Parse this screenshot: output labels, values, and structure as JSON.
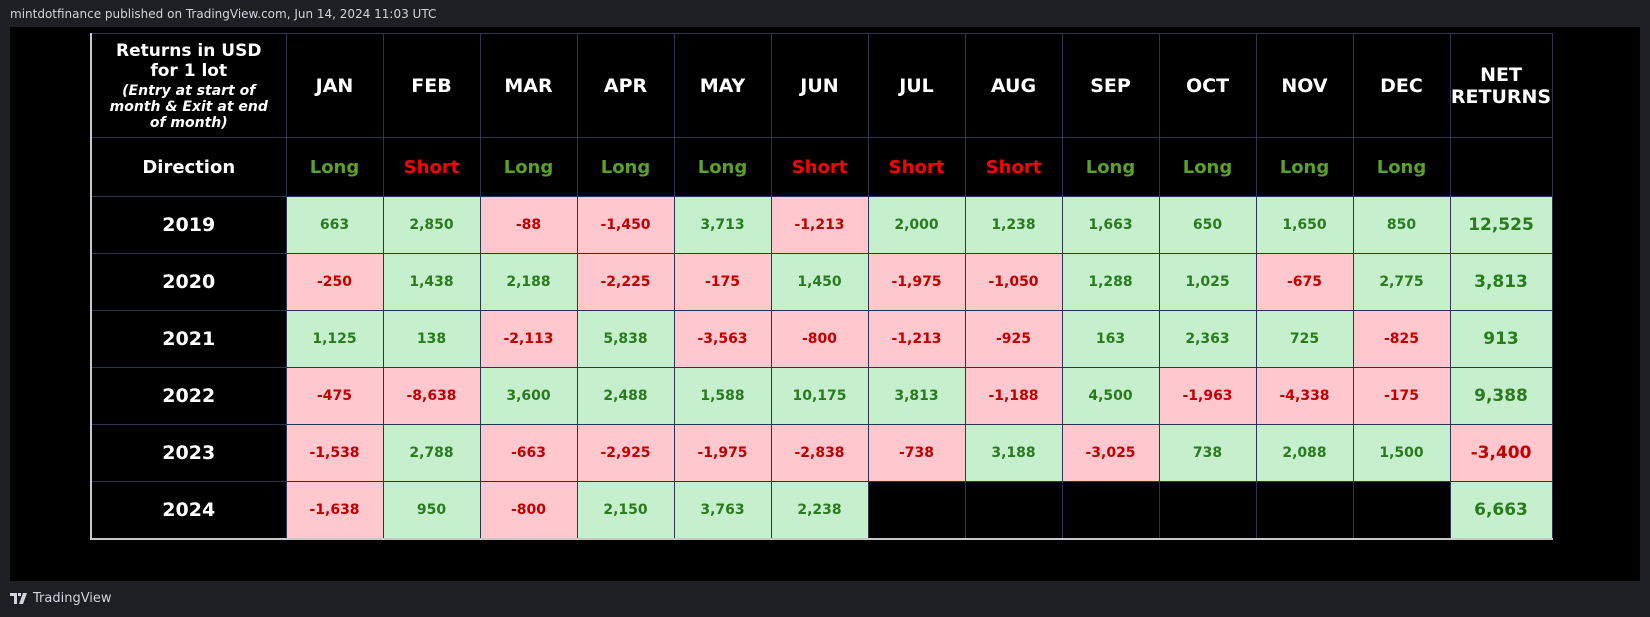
{
  "header": {
    "text": "mintdotfinance published on TradingView.com, Jun 14, 2024 11:03 UTC"
  },
  "table": {
    "corner_title": "Returns in USD for 1 lot",
    "corner_note": "(Entry at start of month & Exit at end of month)",
    "columns": [
      "JAN",
      "FEB",
      "MAR",
      "APR",
      "MAY",
      "JUN",
      "JUL",
      "AUG",
      "SEP",
      "OCT",
      "NOV",
      "DEC",
      "NET RETURNS"
    ],
    "direction_label": "Direction",
    "directions": [
      {
        "label": "Long",
        "color": "#5aa02c"
      },
      {
        "label": "Short",
        "color": "#ff0000"
      },
      {
        "label": "Long",
        "color": "#5aa02c"
      },
      {
        "label": "Long",
        "color": "#5aa02c"
      },
      {
        "label": "Long",
        "color": "#5aa02c"
      },
      {
        "label": "Short",
        "color": "#ff0000"
      },
      {
        "label": "Short",
        "color": "#ff0000"
      },
      {
        "label": "Short",
        "color": "#ff0000"
      },
      {
        "label": "Long",
        "color": "#5aa02c"
      },
      {
        "label": "Long",
        "color": "#5aa02c"
      },
      {
        "label": "Long",
        "color": "#5aa02c"
      },
      {
        "label": "Long",
        "color": "#5aa02c"
      }
    ],
    "rows": [
      {
        "year": "2019",
        "values": [
          "663",
          "2,850",
          "-88",
          "-1,450",
          "3,713",
          "-1,213",
          "2,000",
          "1,238",
          "1,663",
          "650",
          "1,650",
          "850"
        ],
        "net": "12,525"
      },
      {
        "year": "2020",
        "values": [
          "-250",
          "1,438",
          "2,188",
          "-2,225",
          "-175",
          "1,450",
          "-1,975",
          "-1,050",
          "1,288",
          "1,025",
          "-675",
          "2,775"
        ],
        "net": "3,813"
      },
      {
        "year": "2021",
        "values": [
          "1,125",
          "138",
          "-2,113",
          "5,838",
          "-3,563",
          "-800",
          "-1,213",
          "-925",
          "163",
          "2,363",
          "725",
          "-825"
        ],
        "net": "913"
      },
      {
        "year": "2022",
        "values": [
          "-475",
          "-8,638",
          "3,600",
          "2,488",
          "1,588",
          "10,175",
          "3,813",
          "-1,188",
          "4,500",
          "-1,963",
          "-4,338",
          "-175"
        ],
        "net": "9,388"
      },
      {
        "year": "2023",
        "values": [
          "-1,538",
          "2,788",
          "-663",
          "-2,925",
          "-1,975",
          "-2,838",
          "-738",
          "3,188",
          "-3,025",
          "738",
          "2,088",
          "1,500"
        ],
        "net": "-3,400"
      },
      {
        "year": "2024",
        "values": [
          "-1,638",
          "950",
          "-800",
          "2,150",
          "3,763",
          "2,238"
        ],
        "net": "6,663"
      }
    ]
  },
  "footer": {
    "text": "TradingView"
  }
}
